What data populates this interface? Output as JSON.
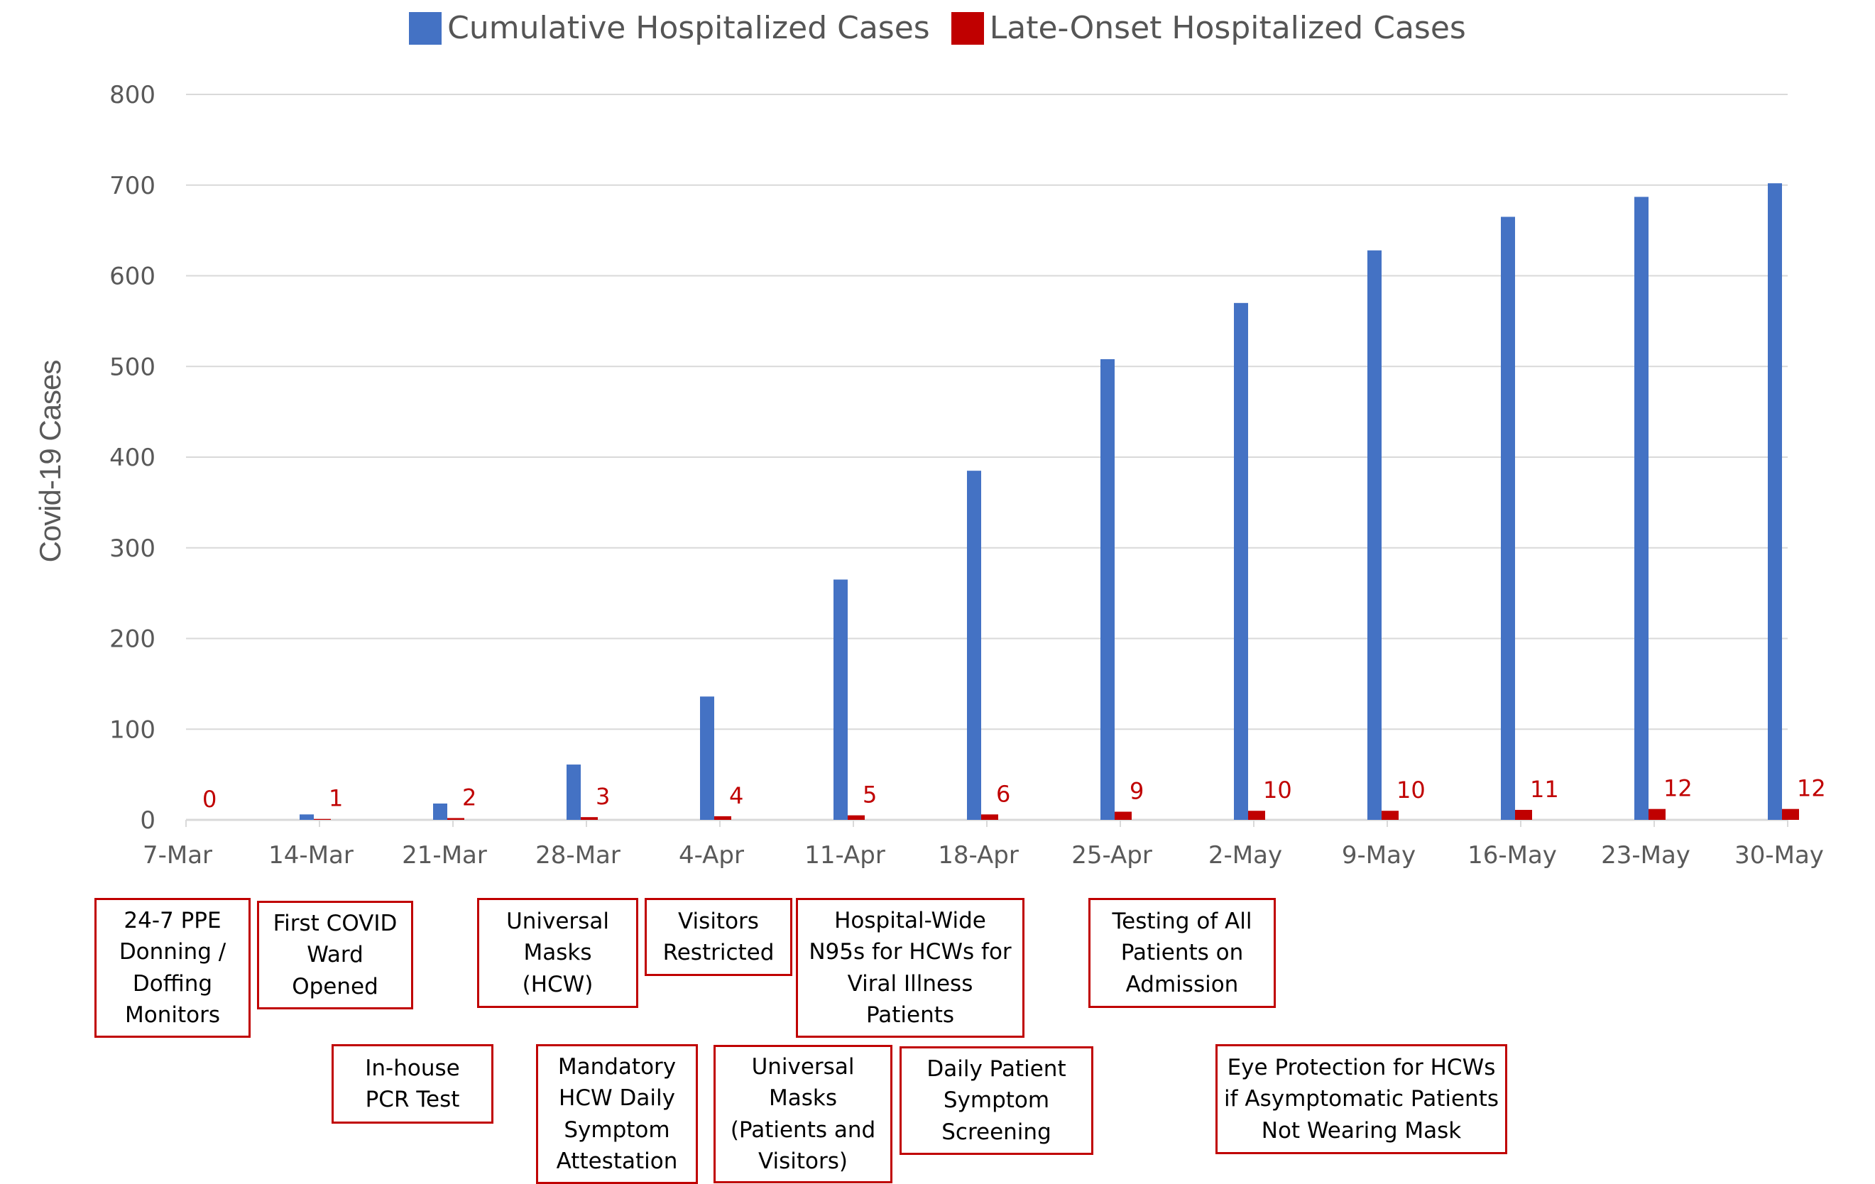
{
  "chart_data": {
    "type": "bar",
    "ylabel": "Covid-19 Cases",
    "xlabel": "",
    "ylim": [
      0,
      800
    ],
    "yticks": [
      0,
      100,
      200,
      300,
      400,
      500,
      600,
      700,
      800
    ],
    "grid": true,
    "legend_position": "top-center",
    "categories": [
      "7-Mar",
      "14-Mar",
      "21-Mar",
      "28-Mar",
      "4-Apr",
      "11-Apr",
      "18-Apr",
      "25-Apr",
      "2-May",
      "9-May",
      "16-May",
      "23-May",
      "30-May"
    ],
    "series": [
      {
        "name": "Cumulative Hospitalized Cases",
        "color": "#4472c4",
        "values": [
          0,
          6,
          18,
          61,
          136,
          265,
          385,
          508,
          570,
          628,
          665,
          687,
          702
        ]
      },
      {
        "name": "Late-Onset Hospitalized Cases",
        "color": "#c00000",
        "values": [
          0,
          1,
          2,
          3,
          4,
          5,
          6,
          9,
          10,
          10,
          11,
          12,
          12
        ],
        "data_labels": [
          "0",
          "1",
          "2",
          "3",
          "4",
          "5",
          "6",
          "9",
          "10",
          "10",
          "11",
          "12",
          "12"
        ]
      }
    ]
  },
  "annotations": [
    {
      "text": "24-7 PPE\nDonning /\nDoffing\nMonitors"
    },
    {
      "text": "First COVID\nWard\nOpened"
    },
    {
      "text": "In-house\nPCR Test"
    },
    {
      "text": "Universal\nMasks\n(HCW)"
    },
    {
      "text": "Mandatory\nHCW Daily\nSymptom\nAttestation"
    },
    {
      "text": "Visitors\nRestricted"
    },
    {
      "text": "Universal\nMasks\n(Patients and\nVisitors)"
    },
    {
      "text": "Hospital-Wide\nN95s for HCWs for\nViral Illness\nPatients"
    },
    {
      "text": "Daily Patient\nSymptom\nScreening"
    },
    {
      "text": "Testing of All\nPatients on\nAdmission"
    },
    {
      "text": "Eye Protection for HCWs\nif Asymptomatic Patients\nNot Wearing Mask"
    }
  ]
}
